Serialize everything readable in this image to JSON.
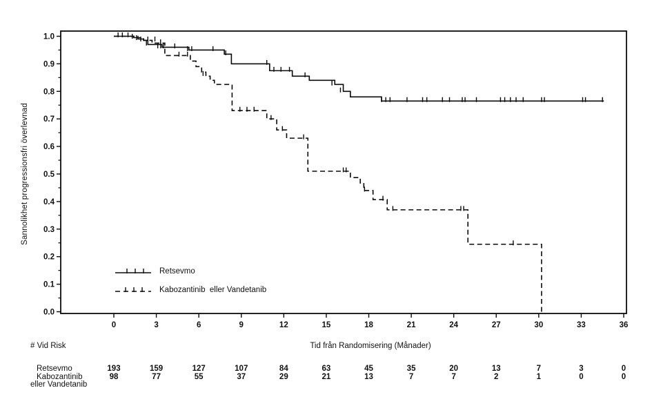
{
  "figure": {
    "background": "#ffffff",
    "line_color": "#0a0a0a",
    "text_color": "#111111"
  },
  "chart_data": {
    "type": "line",
    "subtype": "kaplan-meier-step",
    "title": "",
    "xlabel": "Tid från Randomisering (Månader)",
    "ylabel": "Sannolikhet progressionsfri överlevnad",
    "xlim": [
      0,
      36
    ],
    "ylim": [
      0.0,
      1.0
    ],
    "x_ticks": [
      0,
      3,
      6,
      9,
      12,
      15,
      18,
      21,
      24,
      27,
      30,
      33,
      36
    ],
    "y_ticks": [
      0.0,
      0.1,
      0.2,
      0.3,
      0.4,
      0.5,
      0.6,
      0.7,
      0.8,
      0.9,
      1.0
    ],
    "y_minor_tick_step": 0.05,
    "grid": false,
    "legend_position": "inside-lower-left",
    "series": [
      {
        "name": "Retsevmo",
        "style": "solid",
        "color": "#0a0a0a",
        "steps": [
          [
            0,
            1.0
          ],
          [
            1.4,
            0.995
          ],
          [
            1.7,
            0.99
          ],
          [
            2.1,
            0.985
          ],
          [
            2.4,
            0.97
          ],
          [
            3.4,
            0.96
          ],
          [
            5.3,
            0.95
          ],
          [
            7.8,
            0.935
          ],
          [
            8.3,
            0.9
          ],
          [
            11.0,
            0.875
          ],
          [
            12.6,
            0.855
          ],
          [
            13.8,
            0.84
          ],
          [
            15.6,
            0.825
          ],
          [
            16.2,
            0.8
          ],
          [
            16.7,
            0.78
          ],
          [
            18.9,
            0.765
          ],
          [
            34.6,
            0.765
          ]
        ],
        "censor_marks": [
          [
            0.3,
            1.0
          ],
          [
            0.6,
            1.0
          ],
          [
            1.0,
            1.0
          ],
          [
            1.3,
            0.995
          ],
          [
            1.6,
            0.99
          ],
          [
            1.9,
            0.985
          ],
          [
            2.3,
            0.97
          ],
          [
            3.1,
            0.96
          ],
          [
            3.3,
            0.96
          ],
          [
            3.5,
            0.96
          ],
          [
            4.3,
            0.96
          ],
          [
            5.2,
            0.95
          ],
          [
            5.5,
            0.95
          ],
          [
            7.0,
            0.95
          ],
          [
            7.9,
            0.935
          ],
          [
            10.8,
            0.9
          ],
          [
            11.3,
            0.875
          ],
          [
            11.8,
            0.875
          ],
          [
            12.4,
            0.875
          ],
          [
            13.5,
            0.855
          ],
          [
            15.4,
            0.825
          ],
          [
            16.0,
            0.8
          ],
          [
            18.9,
            0.765
          ],
          [
            19.2,
            0.765
          ],
          [
            19.5,
            0.765
          ],
          [
            20.7,
            0.765
          ],
          [
            21.8,
            0.765
          ],
          [
            22.1,
            0.765
          ],
          [
            23.2,
            0.765
          ],
          [
            23.7,
            0.765
          ],
          [
            24.6,
            0.765
          ],
          [
            24.8,
            0.765
          ],
          [
            25.6,
            0.765
          ],
          [
            27.3,
            0.765
          ],
          [
            27.6,
            0.765
          ],
          [
            28.0,
            0.765
          ],
          [
            28.4,
            0.765
          ],
          [
            28.9,
            0.765
          ],
          [
            30.2,
            0.765
          ],
          [
            30.4,
            0.765
          ],
          [
            33.1,
            0.765
          ],
          [
            33.3,
            0.765
          ],
          [
            34.5,
            0.765
          ]
        ]
      },
      {
        "name": "Kabozantinib eller Vandetanib",
        "style": "dashed",
        "color": "#0a0a0a",
        "steps": [
          [
            0,
            1.0
          ],
          [
            1.7,
            0.995
          ],
          [
            2.1,
            0.985
          ],
          [
            2.7,
            0.975
          ],
          [
            3.6,
            0.93
          ],
          [
            5.4,
            0.91
          ],
          [
            5.8,
            0.89
          ],
          [
            6.2,
            0.87
          ],
          [
            6.5,
            0.855
          ],
          [
            6.8,
            0.84
          ],
          [
            7.1,
            0.825
          ],
          [
            8.35,
            0.73
          ],
          [
            10.8,
            0.7
          ],
          [
            11.5,
            0.66
          ],
          [
            12.2,
            0.63
          ],
          [
            13.7,
            0.51
          ],
          [
            16.7,
            0.487
          ],
          [
            17.4,
            0.465
          ],
          [
            17.65,
            0.44
          ],
          [
            18.3,
            0.407
          ],
          [
            19.3,
            0.37
          ],
          [
            25.0,
            0.245
          ],
          [
            30.2,
            0.0
          ]
        ],
        "censor_marks": [
          [
            2.4,
            0.985
          ],
          [
            2.9,
            0.985
          ],
          [
            3.3,
            0.975
          ],
          [
            4.6,
            0.93
          ],
          [
            5.2,
            0.93
          ],
          [
            6.3,
            0.86
          ],
          [
            8.9,
            0.73
          ],
          [
            9.4,
            0.73
          ],
          [
            9.9,
            0.73
          ],
          [
            11.1,
            0.7
          ],
          [
            11.9,
            0.66
          ],
          [
            13.4,
            0.63
          ],
          [
            16.2,
            0.51
          ],
          [
            16.4,
            0.51
          ],
          [
            17.7,
            0.44
          ],
          [
            19.0,
            0.407
          ],
          [
            19.7,
            0.37
          ],
          [
            24.5,
            0.37
          ],
          [
            24.7,
            0.37
          ],
          [
            28.2,
            0.245
          ]
        ]
      }
    ]
  },
  "legend": {
    "items": [
      {
        "label": "Retsevmo",
        "style": "solid"
      },
      {
        "label": "Kabozantinib  eller Vandetanib",
        "style": "dashed"
      }
    ]
  },
  "risk_table": {
    "header": "# Vid Risk",
    "time_points": [
      0,
      3,
      6,
      9,
      12,
      15,
      18,
      21,
      24,
      27,
      30,
      33,
      36
    ],
    "rows": [
      {
        "label_lines": [
          "Retsevmo"
        ],
        "values": [
          193,
          159,
          127,
          107,
          84,
          63,
          45,
          35,
          20,
          13,
          7,
          3,
          0
        ]
      },
      {
        "label_lines": [
          "Kabozantinib",
          "eller Vandetanib"
        ],
        "values": [
          98,
          77,
          55,
          37,
          29,
          21,
          13,
          7,
          7,
          2,
          1,
          0,
          0
        ]
      }
    ]
  }
}
